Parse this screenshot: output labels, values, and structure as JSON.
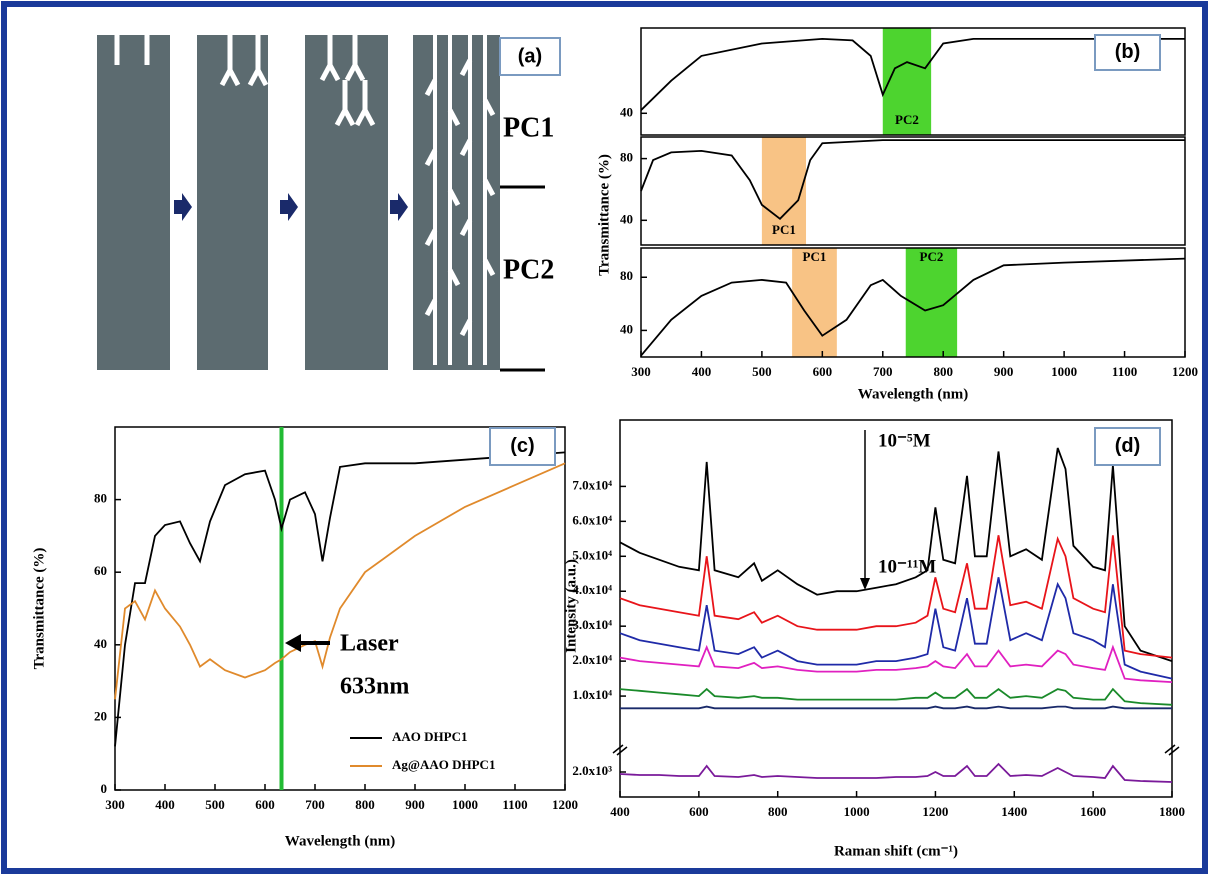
{
  "diagram": {
    "label": "(a)",
    "layers": [
      "PC1",
      "PC2"
    ]
  },
  "chart_data": [
    {
      "type": "line",
      "label": "(b)",
      "x": [
        300,
        350,
        400,
        500,
        600,
        650,
        680,
        700,
        720,
        740,
        770,
        800,
        850,
        900,
        1000,
        1200
      ],
      "series": [
        {
          "color": "#000000",
          "values": [
            42,
            61,
            77,
            85,
            88,
            87,
            77,
            52,
            69,
            73,
            69,
            85,
            88,
            88,
            88,
            88
          ]
        }
      ],
      "xlim": [
        300,
        1200
      ],
      "ylim": [
        26,
        95
      ],
      "yticks": [
        40
      ],
      "bands": [
        {
          "x": [
            700,
            780
          ],
          "label": "PC2",
          "color": "#2ecc0a"
        }
      ]
    },
    {
      "type": "line",
      "x": [
        300,
        320,
        350,
        400,
        450,
        480,
        500,
        530,
        560,
        580,
        600,
        700,
        1200
      ],
      "series": [
        {
          "color": "#000000",
          "values": [
            59,
            79,
            84,
            85,
            82,
            66,
            50,
            41,
            53,
            79,
            90,
            92,
            92
          ]
        }
      ],
      "xlim": [
        300,
        1200
      ],
      "ylim": [
        24,
        94
      ],
      "yticks": [
        40,
        80
      ],
      "ylabel": "Transmittance (%)",
      "bands": [
        {
          "x": [
            500,
            573
          ],
          "label": "PC1",
          "color": "#f7b870"
        }
      ]
    },
    {
      "type": "line",
      "x": [
        300,
        350,
        400,
        450,
        500,
        540,
        570,
        600,
        640,
        680,
        700,
        730,
        770,
        800,
        850,
        900,
        1000,
        1200
      ],
      "series": [
        {
          "color": "#000000",
          "values": [
            21,
            48,
            66,
            76,
            78,
            76,
            55,
            36,
            48,
            74,
            78,
            66,
            55,
            59,
            78,
            89,
            91,
            94
          ]
        }
      ],
      "xlim": [
        300,
        1200
      ],
      "ylim": [
        20,
        102
      ],
      "yticks": [
        40,
        80
      ],
      "xticks": [
        300,
        400,
        500,
        600,
        700,
        800,
        900,
        1000,
        1100,
        1200
      ],
      "xlabel": "Wavelength (nm)",
      "bands": [
        {
          "x": [
            550,
            624
          ],
          "label": "PC1",
          "color": "#f7b870"
        },
        {
          "x": [
            738,
            823
          ],
          "label": "PC2",
          "color": "#2ecc0a"
        }
      ]
    },
    {
      "type": "line",
      "label": "(c)",
      "x": [
        300,
        320,
        340,
        360,
        380,
        400,
        430,
        450,
        470,
        490,
        520,
        560,
        600,
        620,
        633,
        650,
        680,
        700,
        715,
        730,
        750,
        800,
        900,
        1000,
        1100,
        1200
      ],
      "series": [
        {
          "name": "AAO DHPC1",
          "color": "#000000",
          "values": [
            12,
            40,
            57,
            57,
            70,
            73,
            74,
            68,
            63,
            74,
            84,
            87,
            88,
            80,
            72,
            80,
            82,
            76,
            63,
            75,
            89,
            90,
            90,
            91,
            92,
            93
          ]
        },
        {
          "name": "Ag@AAO DHPC1",
          "color": "#e08a2c",
          "values": [
            25,
            50,
            52,
            47,
            55,
            50,
            45,
            40,
            34,
            36,
            33,
            31,
            33,
            35,
            36,
            38,
            40,
            41,
            34,
            42,
            50,
            60,
            70,
            78,
            84,
            90
          ]
        }
      ],
      "xlim": [
        300,
        1200
      ],
      "ylim": [
        0,
        100
      ],
      "xticks": [
        300,
        400,
        500,
        600,
        700,
        800,
        900,
        1000,
        1100,
        1200
      ],
      "yticks": [
        0,
        20,
        40,
        60,
        80
      ],
      "xlabel": "Wavelength (nm)",
      "ylabel": "Transmittance (%)",
      "vline": {
        "x": 633,
        "color": "#22bb33"
      },
      "annotations": [
        "Laser",
        "633nm"
      ],
      "legend": "lower right"
    },
    {
      "type": "line",
      "label": "(d)",
      "x": [
        400,
        450,
        500,
        550,
        600,
        620,
        640,
        700,
        740,
        760,
        800,
        850,
        900,
        950,
        1000,
        1050,
        1100,
        1150,
        1180,
        1200,
        1220,
        1250,
        1280,
        1300,
        1330,
        1360,
        1390,
        1430,
        1470,
        1510,
        1530,
        1550,
        1600,
        1630,
        1650,
        1680,
        1720,
        1800
      ],
      "series": [
        {
          "color": "#000000",
          "values": [
            54000,
            51000,
            49000,
            47000,
            46000,
            77000,
            46000,
            44000,
            48000,
            43000,
            46000,
            42000,
            39000,
            40000,
            40000,
            41000,
            42000,
            44000,
            46000,
            64000,
            49000,
            48000,
            73000,
            50000,
            50000,
            80000,
            50000,
            52000,
            49000,
            81000,
            75000,
            53000,
            47000,
            46000,
            76000,
            30000,
            23000,
            20000
          ]
        },
        {
          "color": "#e8141a",
          "values": [
            38000,
            36000,
            35000,
            34000,
            33000,
            50000,
            33000,
            32000,
            34000,
            31000,
            33000,
            30000,
            29000,
            29000,
            29000,
            30000,
            30000,
            31000,
            33000,
            44000,
            35000,
            34000,
            48000,
            35000,
            35000,
            56000,
            36000,
            37000,
            35000,
            55000,
            50000,
            38000,
            35000,
            34000,
            56000,
            23000,
            22000,
            21000
          ]
        },
        {
          "color": "#1f2aa8",
          "values": [
            28000,
            26000,
            25000,
            24000,
            23000,
            36000,
            23000,
            22000,
            24000,
            21000,
            23000,
            20000,
            19000,
            19000,
            19000,
            20000,
            20000,
            21000,
            22000,
            35000,
            24000,
            23000,
            38000,
            25000,
            25000,
            44000,
            26000,
            28000,
            26000,
            42000,
            38000,
            28000,
            26000,
            24000,
            42000,
            19000,
            17000,
            15000
          ]
        },
        {
          "color": "#e020c0",
          "values": [
            21000,
            20000,
            19500,
            19000,
            18500,
            24000,
            18500,
            18000,
            19500,
            18000,
            18500,
            17500,
            17000,
            17000,
            17000,
            17500,
            17500,
            18000,
            18500,
            20000,
            18500,
            18000,
            22000,
            18500,
            18500,
            23000,
            18500,
            19000,
            18500,
            23000,
            22000,
            19000,
            18000,
            17500,
            24000,
            15000,
            14500,
            14000
          ]
        },
        {
          "color": "#1a8a2a",
          "values": [
            12000,
            11500,
            11000,
            10500,
            10000,
            12000,
            10000,
            9500,
            10000,
            9500,
            9500,
            9000,
            9000,
            9000,
            9000,
            9000,
            9000,
            9500,
            9500,
            11000,
            9500,
            9500,
            12000,
            9500,
            9500,
            12000,
            9500,
            10000,
            9500,
            12000,
            11500,
            9500,
            9000,
            9000,
            12000,
            8500,
            8000,
            7500
          ]
        },
        {
          "color": "#1a2a6a",
          "values": [
            6500,
            6500,
            6500,
            6500,
            6500,
            7000,
            6500,
            6500,
            6500,
            6500,
            6500,
            6500,
            6500,
            6500,
            6500,
            6500,
            6500,
            6500,
            6500,
            7000,
            6500,
            6500,
            7000,
            6500,
            6500,
            7000,
            6500,
            6500,
            6500,
            7000,
            7000,
            6500,
            6500,
            6500,
            7000,
            6500,
            6500,
            6500
          ]
        },
        {
          "color": "#7a1a9a",
          "axis": "y2",
          "values": [
            1900,
            1850,
            1850,
            1800,
            1800,
            2300,
            1800,
            1750,
            1850,
            1750,
            1800,
            1750,
            1700,
            1700,
            1700,
            1700,
            1750,
            1750,
            1800,
            2000,
            1800,
            1800,
            2300,
            1800,
            1800,
            2400,
            1800,
            1850,
            1800,
            2200,
            2000,
            1800,
            1750,
            1700,
            2300,
            1600,
            1550,
            1500
          ]
        }
      ],
      "xlim": [
        400,
        1800
      ],
      "ylim": [
        -4000,
        89000
      ],
      "yticks": [
        {
          "value": 10000,
          "label": "1.0x10⁴"
        },
        {
          "value": 20000,
          "label": "2.0x10⁴"
        },
        {
          "value": 30000,
          "label": "3.0x10⁴"
        },
        {
          "value": 40000,
          "label": "4.0x10⁴"
        },
        {
          "value": 50000,
          "label": "5.0x10⁴"
        },
        {
          "value": 60000,
          "label": "6.0x10⁴"
        },
        {
          "value": 70000,
          "label": "7.0x10⁴"
        }
      ],
      "y2lim": [
        1000,
        3000
      ],
      "y2ticks": [
        {
          "value": 2000,
          "label": "2.0x10³"
        }
      ],
      "xticks": [
        400,
        600,
        800,
        1000,
        1200,
        1400,
        1600,
        1800
      ],
      "xlabel": "Raman shift (cm⁻¹)",
      "ylabel": "Intensity (a.u.)",
      "annotations": [
        "10⁻⁵M",
        "10⁻¹¹M"
      ]
    }
  ]
}
